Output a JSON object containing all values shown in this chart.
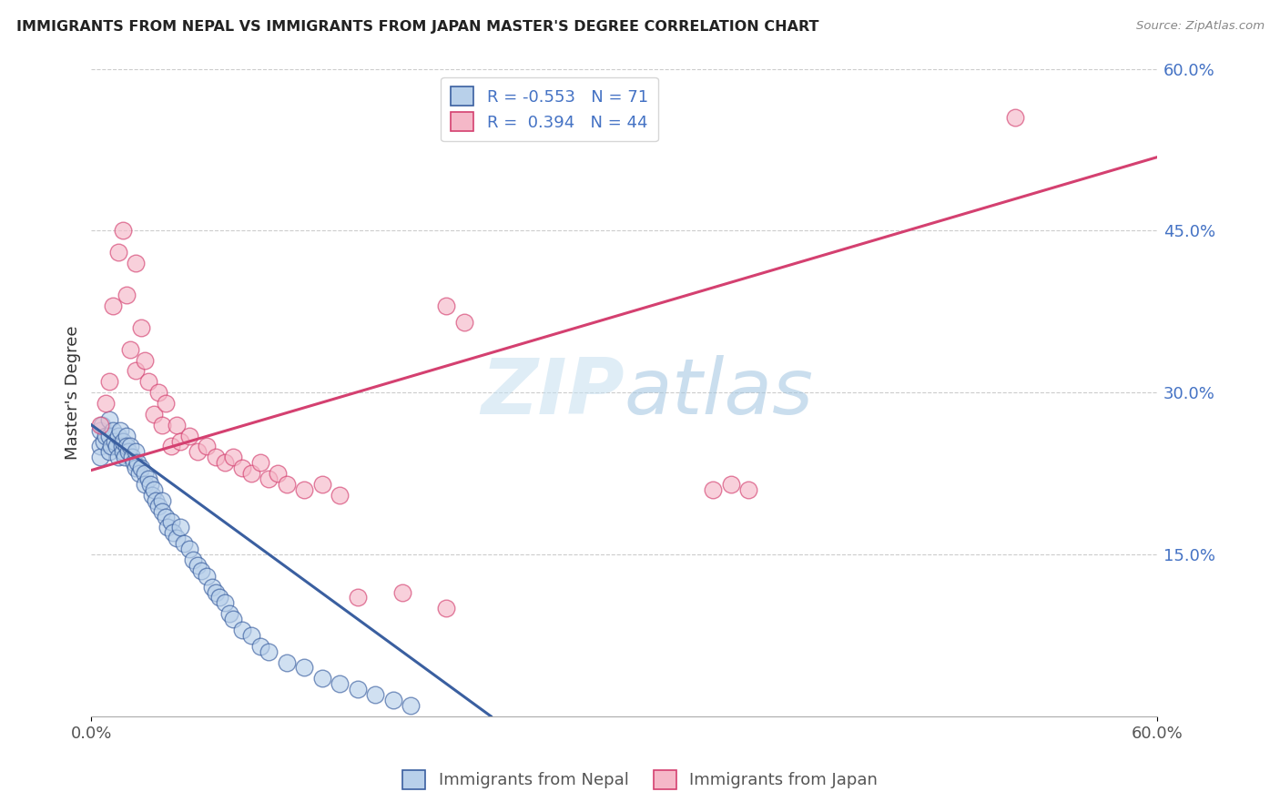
{
  "title": "IMMIGRANTS FROM NEPAL VS IMMIGRANTS FROM JAPAN MASTER'S DEGREE CORRELATION CHART",
  "source": "Source: ZipAtlas.com",
  "ylabel": "Master's Degree",
  "xlim": [
    0.0,
    0.6
  ],
  "ylim": [
    0.0,
    0.6
  ],
  "nepal_R": -0.553,
  "nepal_N": 71,
  "japan_R": 0.394,
  "japan_N": 44,
  "nepal_scatter_color": "#b8d0ea",
  "nepal_line_color": "#3a5fa0",
  "japan_scatter_color": "#f5b8c8",
  "japan_line_color": "#d44070",
  "legend_label_nepal": "Immigrants from Nepal",
  "legend_label_japan": "Immigrants from Japan",
  "nepal_line_x0": 0.0,
  "nepal_line_y0": 0.27,
  "nepal_line_x1": 0.225,
  "nepal_line_y1": 0.0,
  "japan_line_x0": 0.0,
  "japan_line_y0": 0.228,
  "japan_line_x1": 0.6,
  "japan_line_y1": 0.518,
  "nepal_x": [
    0.005,
    0.005,
    0.005,
    0.006,
    0.007,
    0.008,
    0.01,
    0.01,
    0.01,
    0.011,
    0.012,
    0.013,
    0.014,
    0.015,
    0.015,
    0.016,
    0.017,
    0.018,
    0.018,
    0.019,
    0.02,
    0.02,
    0.021,
    0.022,
    0.023,
    0.024,
    0.025,
    0.025,
    0.026,
    0.027,
    0.028,
    0.03,
    0.03,
    0.032,
    0.033,
    0.034,
    0.035,
    0.036,
    0.038,
    0.04,
    0.04,
    0.042,
    0.043,
    0.045,
    0.046,
    0.048,
    0.05,
    0.052,
    0.055,
    0.057,
    0.06,
    0.062,
    0.065,
    0.068,
    0.07,
    0.072,
    0.075,
    0.078,
    0.08,
    0.085,
    0.09,
    0.095,
    0.1,
    0.11,
    0.12,
    0.13,
    0.14,
    0.15,
    0.16,
    0.17,
    0.18
  ],
  "nepal_y": [
    0.265,
    0.25,
    0.24,
    0.27,
    0.255,
    0.26,
    0.275,
    0.26,
    0.245,
    0.25,
    0.265,
    0.255,
    0.25,
    0.26,
    0.24,
    0.265,
    0.25,
    0.245,
    0.255,
    0.24,
    0.26,
    0.25,
    0.245,
    0.25,
    0.24,
    0.235,
    0.245,
    0.23,
    0.235,
    0.225,
    0.23,
    0.225,
    0.215,
    0.22,
    0.215,
    0.205,
    0.21,
    0.2,
    0.195,
    0.2,
    0.19,
    0.185,
    0.175,
    0.18,
    0.17,
    0.165,
    0.175,
    0.16,
    0.155,
    0.145,
    0.14,
    0.135,
    0.13,
    0.12,
    0.115,
    0.11,
    0.105,
    0.095,
    0.09,
    0.08,
    0.075,
    0.065,
    0.06,
    0.05,
    0.045,
    0.035,
    0.03,
    0.025,
    0.02,
    0.015,
    0.01
  ],
  "japan_x": [
    0.005,
    0.008,
    0.01,
    0.012,
    0.015,
    0.018,
    0.02,
    0.022,
    0.025,
    0.025,
    0.028,
    0.03,
    0.032,
    0.035,
    0.038,
    0.04,
    0.042,
    0.045,
    0.048,
    0.05,
    0.055,
    0.06,
    0.065,
    0.07,
    0.075,
    0.08,
    0.085,
    0.09,
    0.095,
    0.1,
    0.105,
    0.11,
    0.12,
    0.13,
    0.14,
    0.15,
    0.175,
    0.2,
    0.35,
    0.36,
    0.52,
    0.2,
    0.21,
    0.37
  ],
  "japan_y": [
    0.27,
    0.29,
    0.31,
    0.38,
    0.43,
    0.45,
    0.39,
    0.34,
    0.32,
    0.42,
    0.36,
    0.33,
    0.31,
    0.28,
    0.3,
    0.27,
    0.29,
    0.25,
    0.27,
    0.255,
    0.26,
    0.245,
    0.25,
    0.24,
    0.235,
    0.24,
    0.23,
    0.225,
    0.235,
    0.22,
    0.225,
    0.215,
    0.21,
    0.215,
    0.205,
    0.11,
    0.115,
    0.1,
    0.21,
    0.215,
    0.555,
    0.38,
    0.365,
    0.21
  ]
}
